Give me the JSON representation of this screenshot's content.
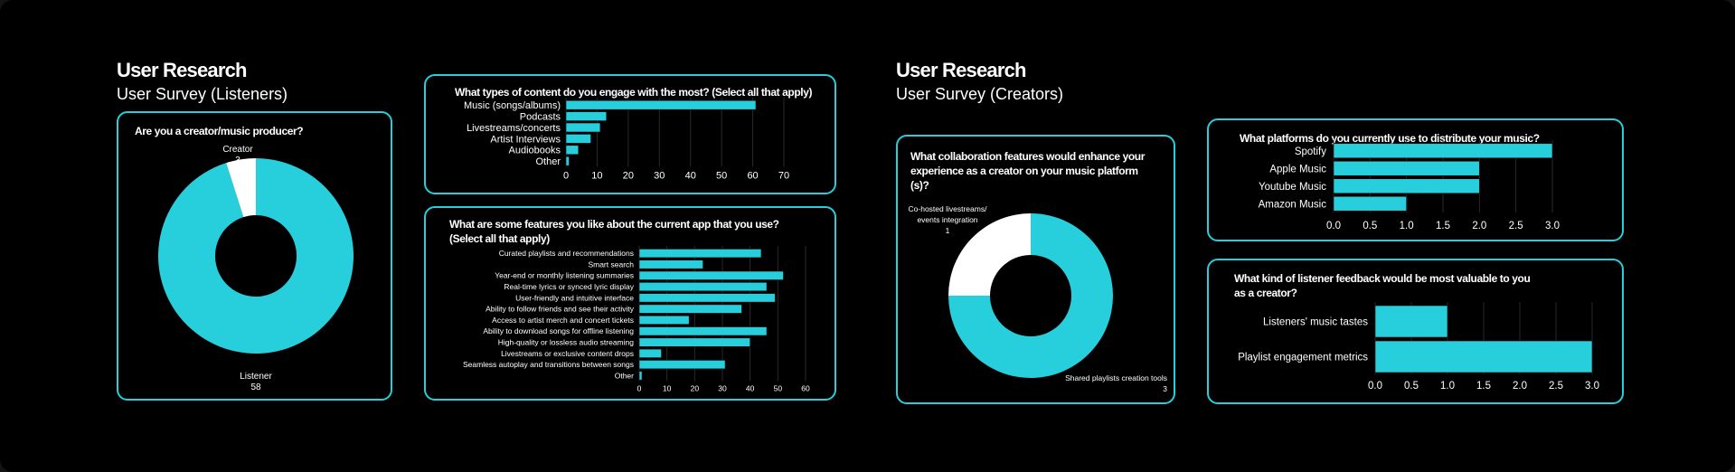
{
  "colors": {
    "accent": "#27cfdc",
    "background": "#000000",
    "text": "#ffffff",
    "secondary_slice": "#ffffff"
  },
  "listeners": {
    "heading": "User Research",
    "subheading": "User Survey (Listeners)"
  },
  "creators": {
    "heading": "User Research",
    "subheading": "User Survey (Creators)"
  },
  "chart_data": [
    {
      "id": "creator-producer",
      "type": "pie",
      "title": "Are you a creator/music producer?",
      "labels": [
        "Listener",
        "Creator"
      ],
      "values": [
        58,
        3
      ]
    },
    {
      "id": "content-types",
      "type": "bar",
      "orientation": "horizontal",
      "title": "What types of content do you engage with the most? (Select all that apply)",
      "categories": [
        "Music (songs/albums)",
        "Podcasts",
        "Livestreams/concerts",
        "Artist Interviews",
        "Audiobooks",
        "Other"
      ],
      "values": [
        61,
        13,
        11,
        8,
        4,
        1
      ],
      "xlim": [
        0,
        70
      ],
      "xticks": [
        0,
        10,
        20,
        30,
        40,
        50,
        60,
        70
      ]
    },
    {
      "id": "current-app-features",
      "type": "bar",
      "orientation": "horizontal",
      "title": "What are some features you like about the current app that you use? (Select all that apply)",
      "categories": [
        "Curated playlists and recommendations",
        "Smart search",
        "Year-end or monthly listening summaries",
        "Real-time lyrics or synced lyric display",
        "User-friendly and intuitive interface",
        "Ability to follow friends and see their activity",
        "Access to artist merch and concert tickets",
        "Ability to download songs for offline listening",
        "High-quality or lossless audio streaming",
        "Livestreams or exclusive content drops",
        "Seamless autoplay and transitions between songs",
        "Other"
      ],
      "values": [
        44,
        23,
        52,
        46,
        49,
        37,
        18,
        46,
        40,
        8,
        31,
        1
      ],
      "xlim": [
        0,
        60
      ],
      "xticks": [
        0,
        10,
        20,
        30,
        40,
        50,
        60
      ]
    },
    {
      "id": "collaboration-features",
      "type": "pie",
      "title": "What collaboration features would enhance your experience as a creator on your music platform (s)?",
      "labels": [
        "Shared playlists creation tools",
        "Co-hosted livestreams/ events integration"
      ],
      "values": [
        3,
        1
      ]
    },
    {
      "id": "distribution-platforms",
      "type": "bar",
      "orientation": "horizontal",
      "title": "What platforms do you currently use to distribute your music?",
      "categories": [
        "Spotify",
        "Apple Music",
        "Youtube Music",
        "Amazon Music"
      ],
      "values": [
        3,
        2,
        2,
        1
      ],
      "xlim": [
        0,
        3
      ],
      "xticks": [
        "0.0",
        "0.5",
        "1.0",
        "1.5",
        "2.0",
        "2.5",
        "3.0"
      ]
    },
    {
      "id": "listener-feedback",
      "type": "bar",
      "orientation": "horizontal",
      "title": "What kind of listener feedback would be most valuable to you as a creator?",
      "categories": [
        "Listeners' music tastes",
        "Playlist engagement metrics"
      ],
      "values": [
        1,
        3
      ],
      "xlim": [
        0,
        3
      ],
      "xticks": [
        "0.0",
        "0.5",
        "1.0",
        "1.5",
        "2.0",
        "2.5",
        "3.0"
      ]
    }
  ]
}
